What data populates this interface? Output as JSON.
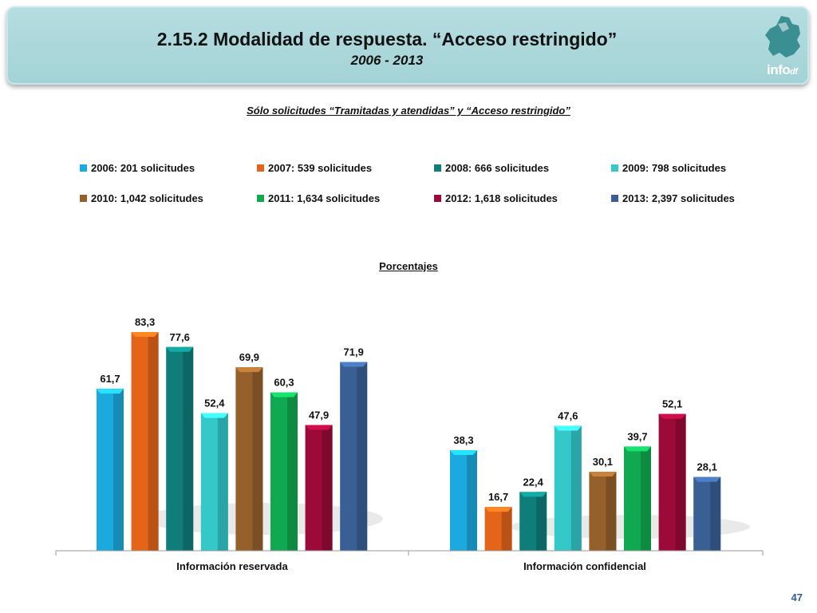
{
  "header": {
    "title": "2.15.2 Modalidad de respuesta. “Acceso restringido”",
    "subtitle": "2006 - 2013",
    "logo_text": "info",
    "logo_suffix": "df"
  },
  "note": "Sólo solicitudes “Tramitadas y atendidas” y “Acceso restringido”",
  "page_number": "47",
  "chart_data": {
    "type": "bar",
    "title": "Porcentajes",
    "categories": [
      "Información reservada",
      "Información confidencial"
    ],
    "series": [
      {
        "name": "2006: 201 solicitudes",
        "color": "#1ba9de",
        "values": [
          61.7,
          38.3
        ],
        "labels": [
          "61,7",
          "38,3"
        ]
      },
      {
        "name": "2007: 539 solicitudes",
        "color": "#e46419",
        "values": [
          83.3,
          16.7
        ],
        "labels": [
          "83,3",
          "16,7"
        ]
      },
      {
        "name": "2008: 666 solicitudes",
        "color": "#0f7e7a",
        "values": [
          77.6,
          22.4
        ],
        "labels": [
          "77,6",
          "22,4"
        ]
      },
      {
        "name": "2009: 798 solicitudes",
        "color": "#34c8c9",
        "values": [
          52.4,
          47.6
        ],
        "labels": [
          "52,4",
          "47,6"
        ]
      },
      {
        "name": "2010: 1,042 solicitudes",
        "color": "#96602c",
        "values": [
          69.9,
          30.1
        ],
        "labels": [
          "69,9",
          "30,1"
        ]
      },
      {
        "name": "2011: 1,634 solicitudes",
        "color": "#11a852",
        "values": [
          60.3,
          39.7
        ],
        "labels": [
          "60,3",
          "39,7"
        ]
      },
      {
        "name": "2012: 1,618 solicitudes",
        "color": "#9b0a38",
        "values": [
          47.9,
          52.1
        ],
        "labels": [
          "47,9",
          "52,1"
        ]
      },
      {
        "name": "2013: 2,397 solicitudes",
        "color": "#3a5f95",
        "values": [
          71.9,
          28.1
        ],
        "labels": [
          "71,9",
          "28,1"
        ]
      }
    ],
    "ylim": [
      0,
      100
    ],
    "grid": false,
    "legend_position": "top"
  }
}
